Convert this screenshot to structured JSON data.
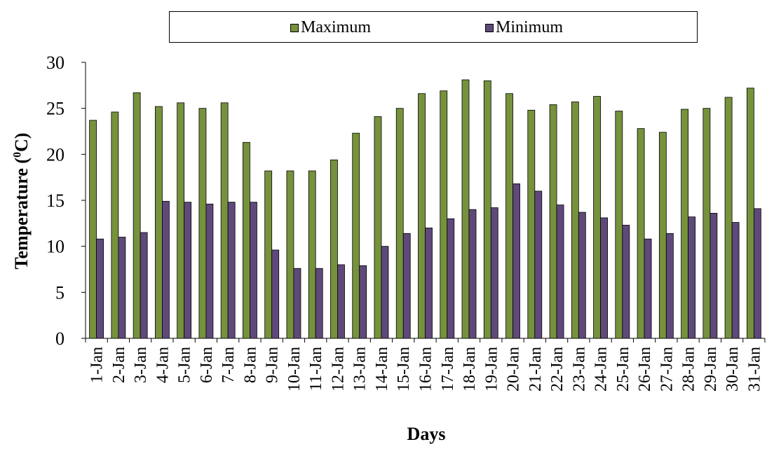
{
  "legend": {
    "position": "top",
    "items": [
      {
        "label": "Maximum",
        "color": "#76923c"
      },
      {
        "label": "Minimum",
        "color": "#5f497a"
      }
    ]
  },
  "chart_data": {
    "type": "bar",
    "title": "",
    "xlabel": "Days",
    "ylabel": "Temperature (",
    "ylabel_sup": "0",
    "ylabel_suffix": "C)",
    "ylim": [
      0,
      30
    ],
    "yticks": [
      0,
      5,
      10,
      15,
      20,
      25,
      30
    ],
    "grid": false,
    "categories": [
      "1-Jan",
      "2-Jan",
      "3-Jan",
      "4-Jan",
      "5-Jan",
      "6-Jan",
      "7-Jan",
      "8-Jan",
      "9-Jan",
      "10-Jan",
      "11-Jan",
      "12-Jan",
      "13-Jan",
      "14-Jan",
      "15-Jan",
      "16-Jan",
      "17-Jan",
      "18-Jan",
      "19-Jan",
      "20-Jan",
      "21-Jan",
      "22-Jan",
      "23-Jan",
      "24-Jan",
      "25-Jan",
      "26-Jan",
      "27-Jan",
      "28-Jan",
      "29-Jan",
      "30-Jan",
      "31-Jan"
    ],
    "series": [
      {
        "name": "Maximum",
        "color": "#76923c",
        "values": [
          23.7,
          24.6,
          26.7,
          25.2,
          25.6,
          25.0,
          25.6,
          21.3,
          18.2,
          18.2,
          18.2,
          19.4,
          22.3,
          24.1,
          25.0,
          26.6,
          26.9,
          28.1,
          28.0,
          26.6,
          24.8,
          25.4,
          25.7,
          26.3,
          24.7,
          22.8,
          22.4,
          24.9,
          25.0,
          26.2,
          27.2
        ]
      },
      {
        "name": "Minimum",
        "color": "#5f497a",
        "values": [
          10.8,
          11.0,
          11.5,
          14.9,
          14.8,
          14.6,
          14.8,
          14.8,
          9.6,
          7.6,
          7.6,
          8.0,
          7.9,
          10.0,
          11.4,
          12.0,
          13.0,
          14.0,
          14.2,
          16.8,
          16.0,
          14.5,
          13.7,
          13.1,
          12.3,
          10.8,
          11.4,
          13.2,
          13.6,
          12.6,
          14.1
        ]
      }
    ]
  }
}
